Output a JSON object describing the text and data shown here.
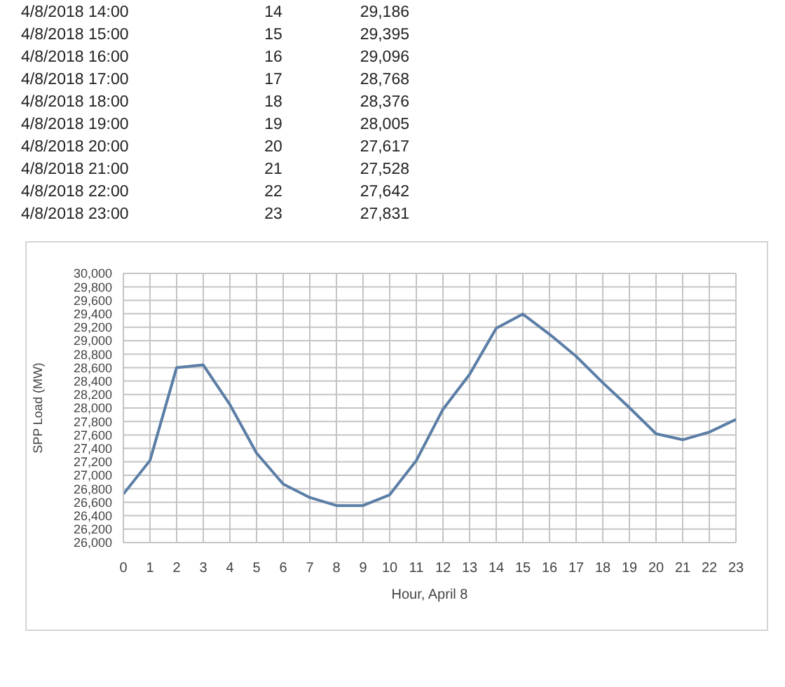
{
  "chart_data": {
    "type": "line",
    "xlabel": "Hour, April 8",
    "ylabel": "SPP Load (MW)",
    "x": [
      0,
      1,
      2,
      3,
      4,
      5,
      6,
      7,
      8,
      9,
      10,
      11,
      12,
      13,
      14,
      15,
      16,
      17,
      18,
      19,
      20,
      21,
      22,
      23
    ],
    "values": [
      26720,
      27220,
      28600,
      28640,
      28050,
      27330,
      26870,
      26670,
      26550,
      26550,
      26710,
      27220,
      27980,
      28500,
      29186,
      29395,
      29096,
      28768,
      28376,
      28005,
      27617,
      27528,
      27642,
      27831
    ],
    "annotations": [
      "4/8/2018 14:00",
      "14",
      "29,186",
      "4/8/2018 15:00",
      "15",
      "29,395",
      "4/8/2018 16:00",
      "16",
      "29,096",
      "4/8/2018 17:00",
      "17",
      "28,768",
      "4/8/2018 18:00",
      "18",
      "28,376",
      "4/8/2018 19:00",
      "19",
      "28,005",
      "4/8/2018 20:00",
      "20",
      "27,617",
      "4/8/2018 21:00",
      "21",
      "27,528",
      "4/8/2018 22:00",
      "22",
      "27,642",
      "4/8/2018 23:00",
      "23",
      "27,831"
    ],
    "color": "#5b7ea6",
    "xlim": [
      0,
      23
    ],
    "xticks": [
      0,
      1,
      2,
      3,
      4,
      5,
      6,
      7,
      8,
      9,
      10,
      11,
      12,
      13,
      14,
      15,
      16,
      17,
      18,
      19,
      20,
      21,
      22,
      23
    ],
    "ylim": [
      26000,
      30000
    ],
    "yticks": [
      {
        "value": 26000,
        "label": "26,000"
      },
      {
        "value": 26200,
        "label": "26,200"
      },
      {
        "value": 26400,
        "label": "26,400"
      },
      {
        "value": 26600,
        "label": "26,600"
      },
      {
        "value": 26800,
        "label": "26,800"
      },
      {
        "value": 27000,
        "label": "27,000"
      },
      {
        "value": 27200,
        "label": "27,200"
      },
      {
        "value": 27400,
        "label": "27,400"
      },
      {
        "value": 27600,
        "label": "27,600"
      },
      {
        "value": 27800,
        "label": "27,800"
      },
      {
        "value": 28000,
        "label": "28,000"
      },
      {
        "value": 28200,
        "label": "28,200"
      },
      {
        "value": 28400,
        "label": "28,400"
      },
      {
        "value": 28600,
        "label": "28,600"
      },
      {
        "value": 28800,
        "label": "28,800"
      },
      {
        "value": 29000,
        "label": "29,000"
      },
      {
        "value": 29200,
        "label": "29,200"
      },
      {
        "value": 29400,
        "label": "29,400"
      },
      {
        "value": 29600,
        "label": "29,600"
      },
      {
        "value": 29800,
        "label": "29,800"
      },
      {
        "value": 30000,
        "label": "30,000"
      }
    ],
    "grid": true
  }
}
